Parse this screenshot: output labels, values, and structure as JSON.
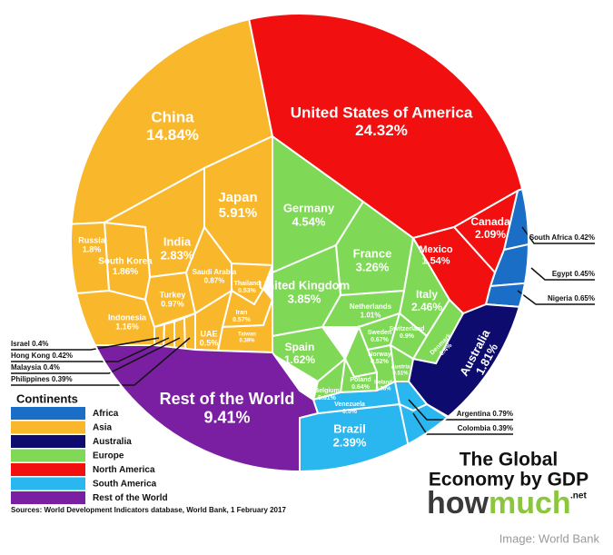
{
  "chart_data": {
    "type": "voronoi_treemap",
    "title": [
      "The Global",
      "Economy by GDP"
    ],
    "brand": [
      "how",
      "much",
      ".net"
    ],
    "legend_title": "Continents",
    "source": "Sources: World Development Indicators database, World Bank, 1 February 2017",
    "caption": "Image: World Bank",
    "series": [
      {
        "name": "Africa",
        "color": "#1a6ec6",
        "categories": [
          "South Africa",
          "Egypt",
          "Nigeria"
        ],
        "values": [
          0.42,
          0.45,
          0.65
        ],
        "value_labels": [
          "0.42%",
          "0.45%",
          "0.65%"
        ]
      },
      {
        "name": "Asia",
        "color": "#f9b82c",
        "categories": [
          "China",
          "Japan",
          "India",
          "South Korea",
          "Russia",
          "Indonesia",
          "Turkey",
          "Saudi Arabia",
          "Thailand",
          "Iran",
          "Taiwan",
          "UAE",
          "Israel",
          "Hong Kong",
          "Malaysia",
          "Philippines"
        ],
        "values": [
          14.84,
          5.91,
          2.83,
          1.86,
          1.8,
          1.16,
          0.97,
          0.87,
          0.53,
          0.57,
          0.39,
          0.5,
          0.4,
          0.42,
          0.4,
          0.39
        ],
        "value_labels": [
          "14.84%",
          "5.91%",
          "2.83%",
          "1.86%",
          "1.8%",
          "1.16%",
          "0.97%",
          "0.87%",
          "0.53%",
          "0.57%",
          "0.39%",
          "0.5%",
          "0.4%",
          "0.42%",
          "0.4%",
          "0.39%"
        ]
      },
      {
        "name": "Australia",
        "color": "#0d0c6e",
        "categories": [
          "Australia"
        ],
        "values": [
          1.81
        ],
        "value_labels": [
          "1.81%"
        ]
      },
      {
        "name": "Europe",
        "color": "#7fd957",
        "categories": [
          "Germany",
          "France",
          "United Kingdom",
          "Italy",
          "Netherlands",
          "Spain",
          "Sweden",
          "Switzerland",
          "Norway",
          "Poland",
          "Austria",
          "Ireland",
          "Belgium",
          "Denmark"
        ],
        "values": [
          4.54,
          3.26,
          3.85,
          2.46,
          1.01,
          1.62,
          0.67,
          0.9,
          0.52,
          0.64,
          0.51,
          0.38,
          0.61,
          0.4
        ],
        "value_labels": [
          "4.54%",
          "3.26%",
          "3.85%",
          "2.46%",
          "1.01%",
          "1.62%",
          "0.67%",
          "0.9%",
          "0.52%",
          "0.64%",
          "0.51%",
          "0.38%",
          "0.61%",
          "0.4%"
        ]
      },
      {
        "name": "North America",
        "color": "#f10f0f",
        "categories": [
          "United States of America",
          "Canada",
          "Mexico"
        ],
        "values": [
          24.32,
          2.09,
          1.54
        ],
        "value_labels": [
          "24.32%",
          "2.09%",
          "1.54%"
        ]
      },
      {
        "name": "South America",
        "color": "#2ab6ef",
        "categories": [
          "Brazil",
          "Venezuela",
          "Argentina",
          "Colombia"
        ],
        "values": [
          2.39,
          0.5,
          0.79,
          0.39
        ],
        "value_labels": [
          "2.39%",
          "0.5%",
          "0.79%",
          "0.39%"
        ]
      },
      {
        "name": "Rest of the World",
        "color": "#7b1fa2",
        "categories": [
          "Rest of the World"
        ],
        "values": [
          9.41
        ],
        "value_labels": [
          "9.41%"
        ]
      }
    ]
  }
}
